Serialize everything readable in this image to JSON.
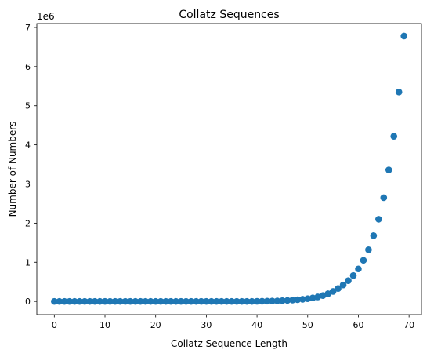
{
  "chart_data": {
    "type": "scatter",
    "title": "Collatz Sequences",
    "xlabel": "Collatz Sequence Length",
    "ylabel": "Number of Numbers",
    "y_offset_label": "1e6",
    "xlim": [
      -3.45,
      72.45
    ],
    "ylim": [
      -338000,
      7100000
    ],
    "x_ticks": [
      0,
      10,
      20,
      30,
      40,
      50,
      60,
      70
    ],
    "y_ticks": [
      0,
      1,
      2,
      3,
      4,
      5,
      6,
      7
    ],
    "y_tick_scale": 1000000,
    "grid": false,
    "marker_color": "#1f77b4",
    "x": [
      0,
      1,
      2,
      3,
      4,
      5,
      6,
      7,
      8,
      9,
      10,
      11,
      12,
      13,
      14,
      15,
      16,
      17,
      18,
      19,
      20,
      21,
      22,
      23,
      24,
      25,
      26,
      27,
      28,
      29,
      30,
      31,
      32,
      33,
      34,
      35,
      36,
      37,
      38,
      39,
      40,
      41,
      42,
      43,
      44,
      45,
      46,
      47,
      48,
      49,
      50,
      51,
      52,
      53,
      54,
      55,
      56,
      57,
      58,
      59,
      60,
      61,
      62,
      63,
      64,
      65,
      66,
      67,
      68,
      69
    ],
    "y": [
      0,
      0,
      0,
      0,
      0,
      0,
      0,
      0,
      0,
      0,
      0,
      0,
      0,
      0,
      0,
      0,
      0,
      0,
      0,
      0,
      0,
      0,
      0,
      0,
      0,
      0,
      0,
      0,
      0,
      0,
      0,
      0,
      0,
      0,
      0,
      0,
      0,
      0,
      0,
      0,
      2000,
      4000,
      6000,
      9000,
      13000,
      19000,
      25000,
      33000,
      43000,
      55000,
      70000,
      90000,
      115000,
      150000,
      195000,
      255000,
      330000,
      420000,
      530000,
      660000,
      830000,
      1050000,
      1320000,
      1680000,
      2100000,
      2650000,
      3360000,
      4220000,
      5350000,
      6780000
    ]
  }
}
